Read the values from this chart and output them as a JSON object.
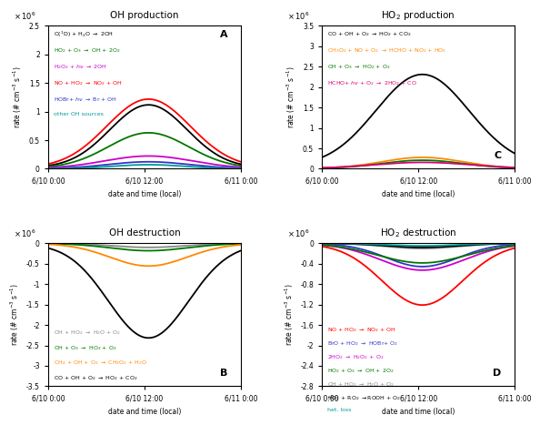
{
  "title_A": "OH production",
  "title_B": "OH destruction",
  "title_C": "HO$_2$ production",
  "title_D": "HO$_2$ destruction",
  "xlabel": "date and time (local)",
  "ylabel": "rate (# cm$^{-3}$ s$^{-1}$)",
  "xtick_labels": [
    "6/10 0:00",
    "6/10 12:00",
    "6/11 0:00"
  ],
  "legend_A": [
    {
      "label": "O($^1$D) + H$_2$O $\\rightarrow$ 2OH",
      "color": "#000000"
    },
    {
      "label": "HO$_2$ + O$_3$ $\\rightarrow$ OH + 2O$_2$",
      "color": "#007700"
    },
    {
      "label": "H$_2$O$_2$ + $h\\nu$ $\\rightarrow$ 2OH",
      "color": "#cc00cc"
    },
    {
      "label": "NO + HO$_2$ $\\rightarrow$ NO$_2$ + OH",
      "color": "#ff0000"
    },
    {
      "label": "HOBr+ $h\\nu$ $\\rightarrow$ Br + OH",
      "color": "#3333cc"
    },
    {
      "label": "other OH sources",
      "color": "#009999"
    }
  ],
  "legend_B": [
    {
      "label": "OH + HO$_2$ $\\rightarrow$ H$_2$O + O$_2$",
      "color": "#888888"
    },
    {
      "label": "OH + O$_3$ $\\rightarrow$ HO$_2$ + O$_2$",
      "color": "#007700"
    },
    {
      "label": "CH$_4$ + OH + O$_2$ $\\rightarrow$ CH$_3$O$_2$ + H$_2$O",
      "color": "#ff8800"
    },
    {
      "label": "CO + OH + O$_2$ $\\rightarrow$ HO$_2$ + CO$_2$",
      "color": "#000000"
    }
  ],
  "legend_C": [
    {
      "label": "CO + OH + O$_2$ $\\rightarrow$ HO$_2$ + CO$_2$",
      "color": "#000000"
    },
    {
      "label": "CH$_3$O$_2$ + NO + O$_2$ $\\rightarrow$ HCHO + NO$_2$ + HO$_2$",
      "color": "#ff8800"
    },
    {
      "label": "OH + O$_3$ $\\rightarrow$ HO$_2$ + O$_2$",
      "color": "#007700"
    },
    {
      "label": "HCHO+ $h\\nu$ + O$_2$ $\\rightarrow$ 2HO$_2$ + CO",
      "color": "#dd0077"
    }
  ],
  "legend_D": [
    {
      "label": "NO + HO$_2$ $\\rightarrow$ NO$_2$ + OH",
      "color": "#ff0000"
    },
    {
      "label": "BrO + HO$_2$ $\\rightarrow$ HOBr+ O$_2$",
      "color": "#3333cc"
    },
    {
      "label": "2HO$_2$ $\\rightarrow$ H$_2$O$_2$ + O$_2$",
      "color": "#cc00cc"
    },
    {
      "label": "HO$_2$ + O$_3$ $\\rightarrow$ OH + 2O$_2$",
      "color": "#007700"
    },
    {
      "label": "OH + HO$_2$ $\\rightarrow$ H$_2$O + O$_2$",
      "color": "#888888"
    },
    {
      "label": "HO$_2$ + RO$_2$ $\\rightarrow$ROOH + O$_2$",
      "color": "#000000"
    },
    {
      "label": "het. loss",
      "color": "#009999"
    }
  ],
  "ylim_A": [
    0,
    2500000.0
  ],
  "ylim_B": [
    -3500000.0,
    0
  ],
  "ylim_C": [
    0,
    3500000.0
  ],
  "ylim_D": [
    -2800000.0,
    0
  ],
  "yticks_A": [
    0,
    500000.0,
    1000000.0,
    1500000.0,
    2000000.0,
    2500000.0
  ],
  "yticks_B": [
    -3500000.0,
    -3000000.0,
    -2500000.0,
    -2000000.0,
    -1500000.0,
    -1000000.0,
    -500000.0,
    0
  ],
  "yticks_C": [
    0,
    500000.0,
    1000000.0,
    1500000.0,
    2000000.0,
    2500000.0,
    3000000.0,
    3500000.0
  ],
  "yticks_D": [
    -2800000.0,
    -2400000.0,
    -2000000.0,
    -1600000.0,
    -1200000.0,
    -800000.0,
    -400000.0,
    0
  ]
}
